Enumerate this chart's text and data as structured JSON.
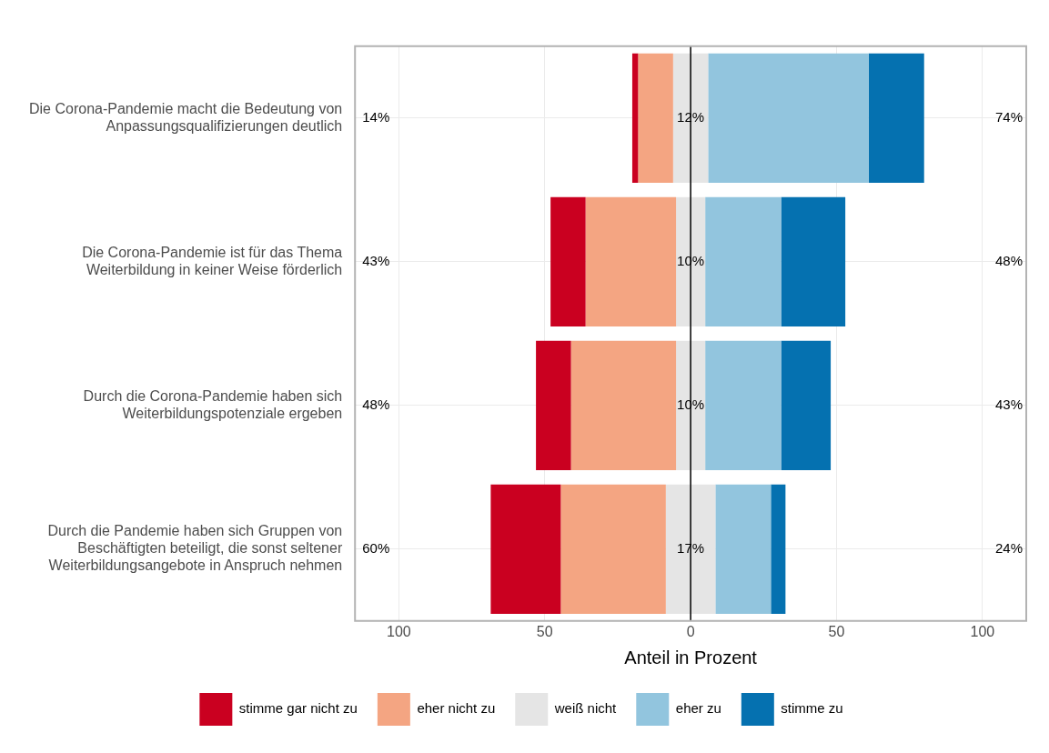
{
  "chart_data": {
    "type": "bar",
    "orientation": "horizontal",
    "xlabel": "Anteil in Prozent",
    "categories": [
      "Die Corona-Pandemie macht die Bedeutung von Anpassungsqualifizierungen deutlich",
      "Die Corona-Pandemie ist für das Thema Weiterbildung in keiner Weise förderlich",
      "Durch die Corona-Pandemie haben sich Weiterbildungspotenziale ergeben",
      "Durch die Pandemie haben sich Gruppen von Beschäftigten beteiligt, die sonst seltener Weiterbildungsangebote in Anspruch nehmen"
    ],
    "series": [
      {
        "name": "stimme gar nicht zu",
        "color": "#ca0020",
        "base": [
          -20,
          -48,
          -53,
          -68.5
        ],
        "values": [
          2,
          12,
          12,
          24
        ]
      },
      {
        "name": "eher nicht zu",
        "color": "#f4a582",
        "base": [
          -18,
          -36,
          -41,
          -44.5
        ],
        "values": [
          12,
          31,
          36,
          36
        ]
      },
      {
        "name": "weiß nicht",
        "color": "#e5e5e5",
        "base": [
          -6,
          -5,
          -5,
          -8.5
        ],
        "values": [
          12,
          10,
          10,
          17
        ]
      },
      {
        "name": "eher zu",
        "color": "#92c5de",
        "base": [
          6,
          5,
          5,
          8.5
        ],
        "values": [
          55,
          26,
          26,
          19
        ]
      },
      {
        "name": "stimme zu",
        "color": "#0571b0",
        "base": [
          61,
          31,
          31,
          27.5
        ],
        "values": [
          19,
          22,
          17,
          5
        ]
      }
    ],
    "xlim": [
      -115,
      115
    ],
    "xticks": [
      {
        "value": -100,
        "label": "100"
      },
      {
        "value": -50,
        "label": "50"
      },
      0,
      50,
      100
    ],
    "ref_lines": [
      {
        "axis": "x",
        "value": 0,
        "color": "#000000"
      }
    ],
    "annotations": [
      "14%",
      "12%",
      "74%",
      "43%",
      "10%",
      "48%",
      "48%",
      "10%",
      "43%",
      "60%",
      "17%",
      "24%"
    ],
    "grid": true,
    "legend": "bottom"
  }
}
